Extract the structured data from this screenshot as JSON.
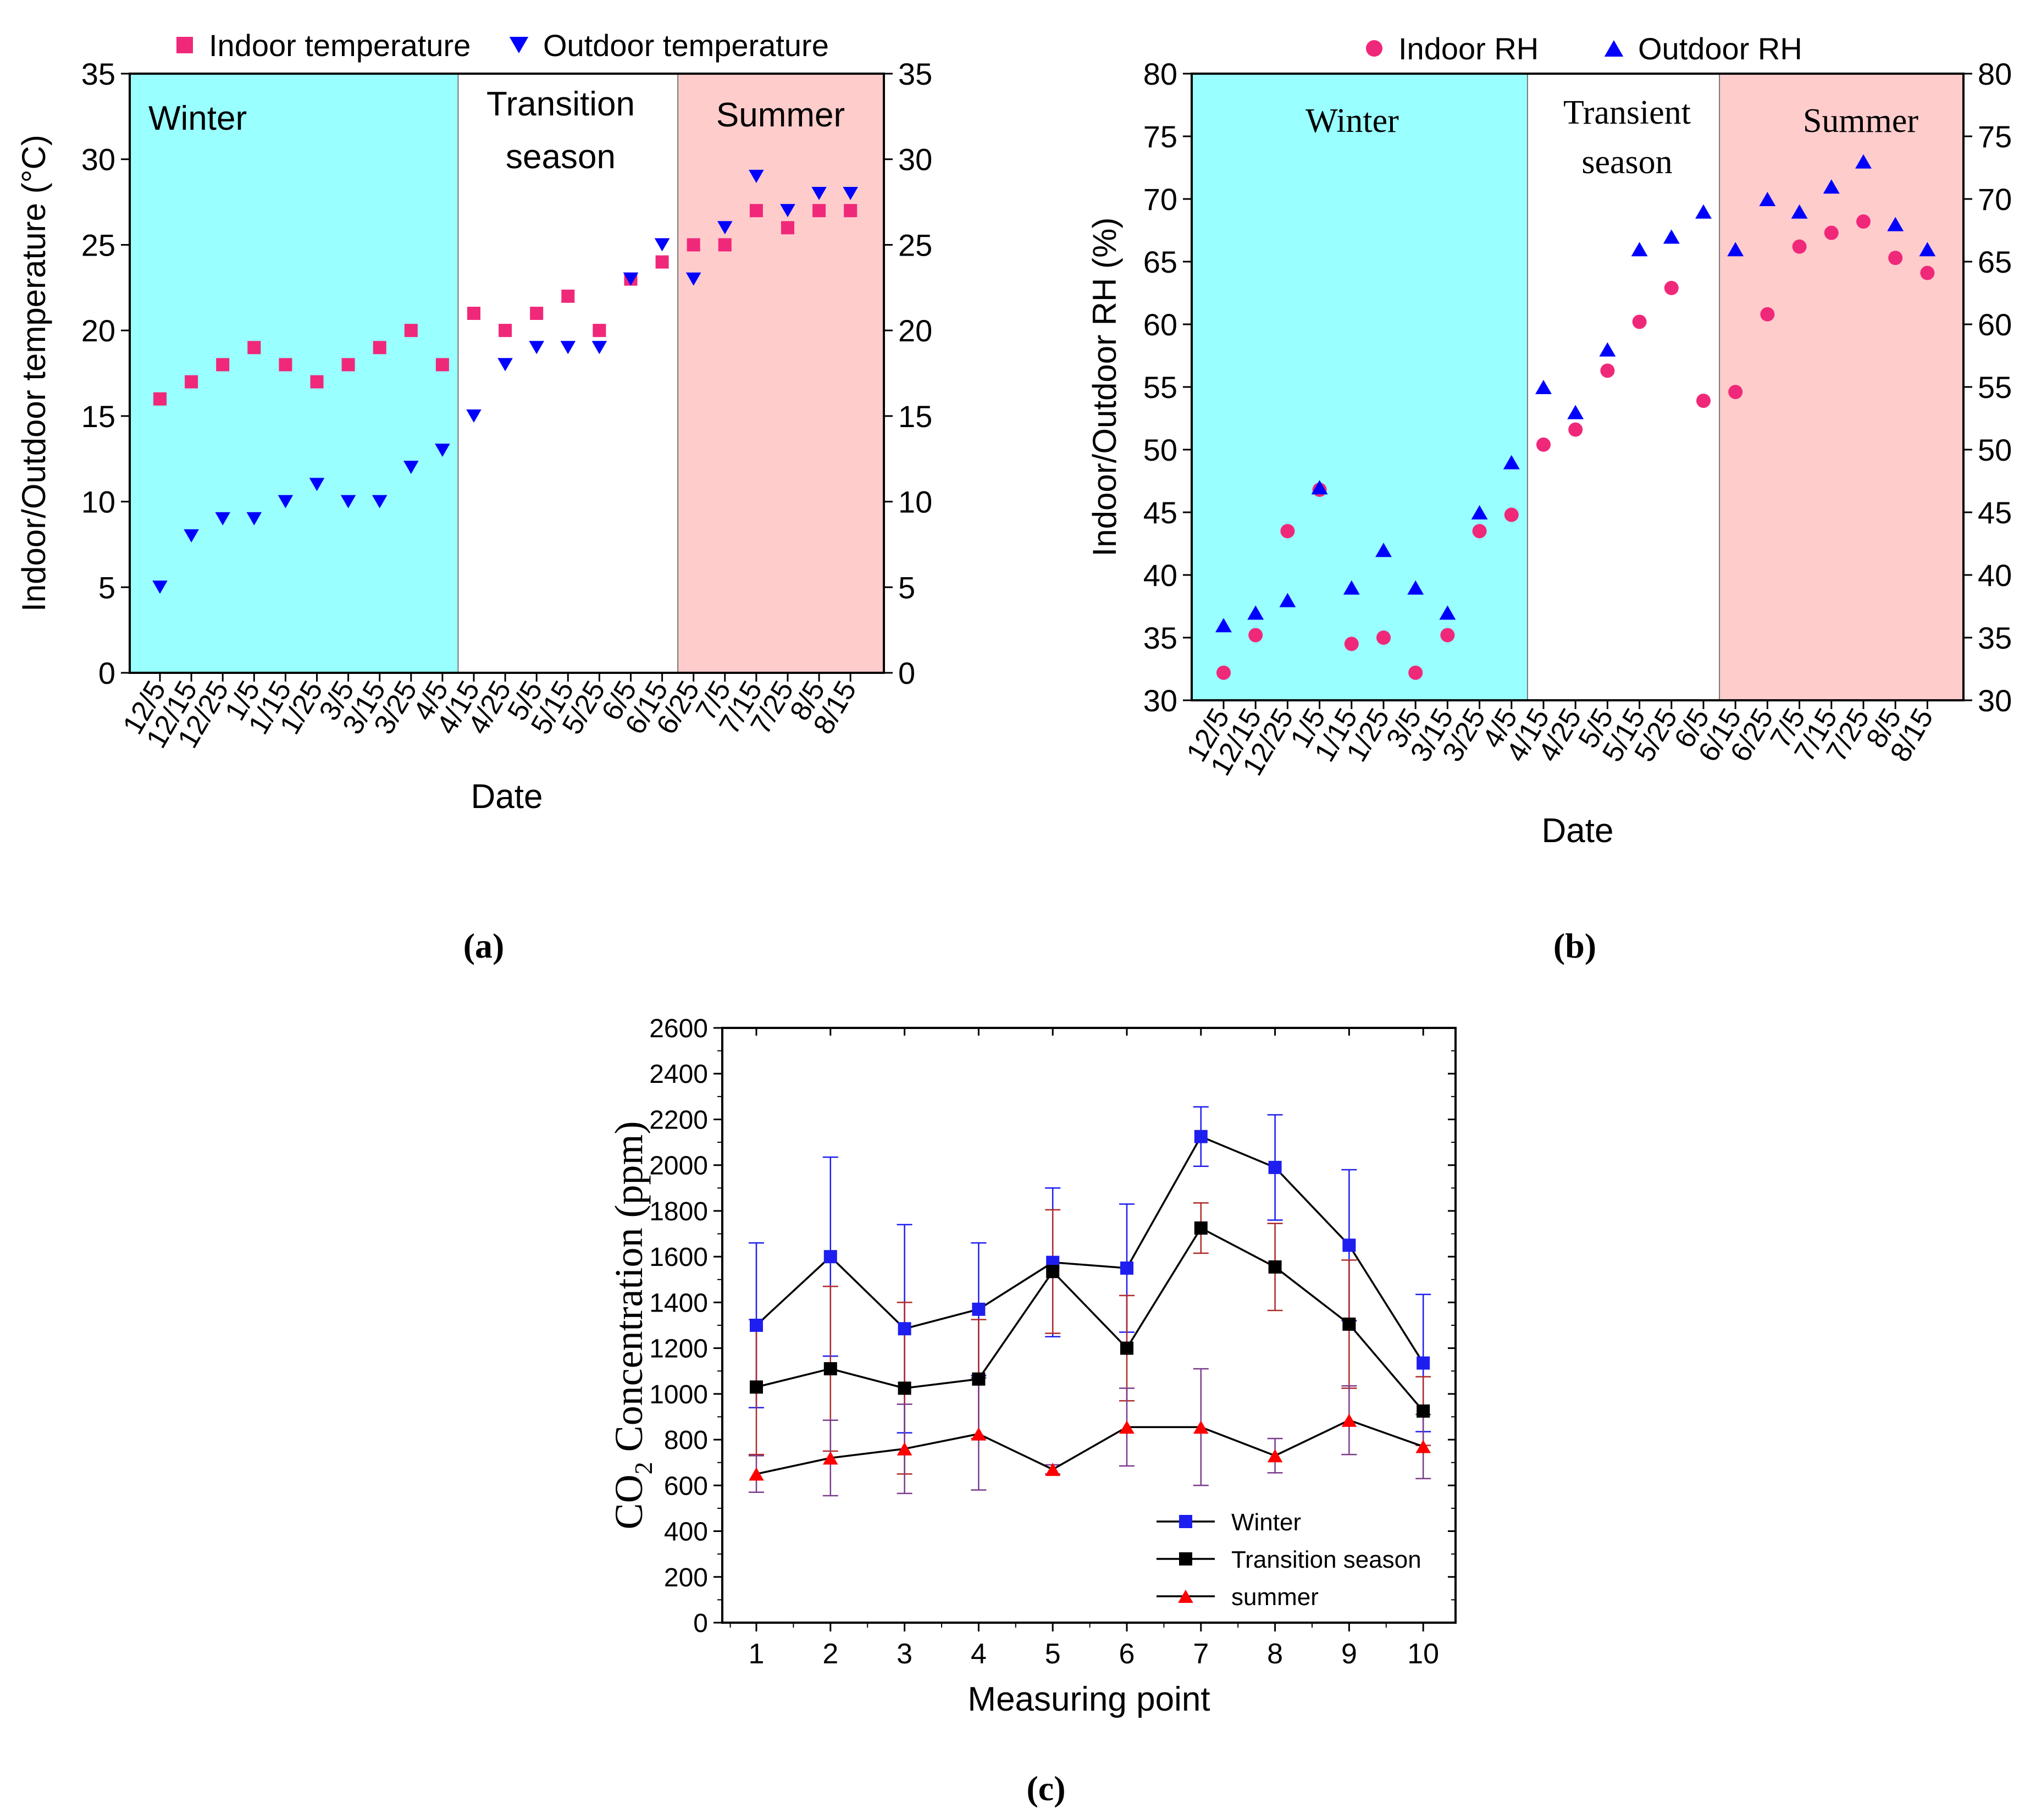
{
  "colors": {
    "winter_bg": "#99FFFF",
    "summer_bg": "#FFCCCC",
    "indoor": "#F0287A",
    "outdoor": "#0000FF",
    "winter_series": "#1E1EF0",
    "transition_series": "#000000",
    "summer_series": "#FF0000",
    "summer_error": "#7A3C8C",
    "transition_error": "#B02A2A"
  },
  "chart_data": [
    {
      "id": "a",
      "panel_label": "(a)",
      "type": "scatter",
      "title": "",
      "xlabel": "Date",
      "ylabel": "Indoor/Outdoor temperature (°C)",
      "ylim": [
        0,
        35
      ],
      "yticks": [
        "0",
        "5",
        "10",
        "15",
        "20",
        "25",
        "30",
        "35"
      ],
      "categories": [
        "12/5",
        "12/15",
        "12/25",
        "1/5",
        "1/15",
        "1/25",
        "3/5",
        "3/15",
        "3/25",
        "4/5",
        "4/15",
        "4/25",
        "5/5",
        "5/15",
        "5/25",
        "6/5",
        "6/15",
        "6/25",
        "7/5",
        "7/15",
        "7/25",
        "8/5",
        "8/15"
      ],
      "regions": [
        {
          "label": "Winter",
          "from_index": 0,
          "to_index": 10
        },
        {
          "label": "Transition season",
          "from_index": 10,
          "to_index": 17
        },
        {
          "label": "Summer",
          "from_index": 17,
          "to_index": 23
        }
      ],
      "legend": [
        "Indoor temperature",
        "Outdoor temperature"
      ],
      "series": [
        {
          "name": "Indoor temperature",
          "marker": "square",
          "values": [
            16,
            17,
            18,
            19,
            18,
            17,
            18,
            19,
            20,
            18,
            21,
            20,
            21,
            22,
            20,
            23,
            24,
            25,
            25,
            27,
            26,
            27,
            27
          ]
        },
        {
          "name": "Outdoor temperature",
          "marker": "triangle-down",
          "values": [
            5,
            8,
            9,
            9,
            10,
            11,
            10,
            10,
            12,
            13,
            15,
            18,
            19,
            19,
            19,
            23,
            25,
            23,
            26,
            29,
            27,
            28,
            28
          ]
        }
      ]
    },
    {
      "id": "b",
      "panel_label": "(b)",
      "type": "scatter",
      "title": "",
      "xlabel": "Date",
      "ylabel": "Indoor/Outdoor RH (%)",
      "ylim": [
        30,
        80
      ],
      "yticks": [
        "30",
        "35",
        "40",
        "45",
        "50",
        "55",
        "60",
        "65",
        "70",
        "75",
        "80"
      ],
      "categories": [
        "12/5",
        "12/15",
        "12/25",
        "1/5",
        "1/15",
        "1/25",
        "3/5",
        "3/15",
        "3/25",
        "4/5",
        "4/15",
        "4/25",
        "5/5",
        "5/15",
        "5/25",
        "6/5",
        "6/15",
        "6/25",
        "7/5",
        "7/15",
        "7/25",
        "8/5",
        "8/15"
      ],
      "regions": [
        {
          "label": "Winter",
          "from_index": 0,
          "to_index": 10
        },
        {
          "label": "Transient season",
          "from_index": 10,
          "to_index": 16
        },
        {
          "label": "Summer",
          "from_index": 16,
          "to_index": 23
        }
      ],
      "legend": [
        "Indoor RH",
        "Outdoor RH"
      ],
      "series": [
        {
          "name": "Indoor RH",
          "marker": "circle",
          "values": [
            32.2,
            35.2,
            43.5,
            46.8,
            34.5,
            35,
            32.2,
            35.2,
            43.5,
            44.8,
            50.4,
            51.6,
            56.3,
            60.2,
            62.9,
            53.9,
            54.6,
            60.8,
            66.2,
            67.3,
            68.2,
            65.3,
            64.1
          ]
        },
        {
          "name": "Outdoor RH",
          "marker": "triangle-up",
          "values": [
            36,
            37,
            38,
            47,
            39,
            42,
            39,
            37,
            45,
            49,
            55,
            53,
            58,
            66,
            67,
            69,
            66,
            70,
            69,
            71,
            73,
            68,
            66
          ]
        }
      ]
    },
    {
      "id": "c",
      "panel_label": "(c)",
      "type": "line",
      "title": "",
      "xlabel": "Measuring point",
      "ylabel": "CO2 Concentration (ppm)",
      "ylabel_main": "CO",
      "ylabel_sub": "2",
      "ylabel_rest": " Concentration (ppm)",
      "ylim": [
        0,
        2600
      ],
      "yticks": [
        "0",
        "200",
        "400",
        "600",
        "800",
        "1000",
        "1200",
        "1400",
        "1600",
        "1800",
        "2000",
        "2200",
        "2400",
        "2600"
      ],
      "x": [
        "1",
        "2",
        "3",
        "4",
        "5",
        "6",
        "7",
        "8",
        "9",
        "10"
      ],
      "legend": [
        "Winter",
        "Transition season",
        "summer"
      ],
      "series": [
        {
          "name": "Winter",
          "marker": "square",
          "values": [
            1300,
            1600,
            1285,
            1370,
            1575,
            1550,
            2125,
            1990,
            1650,
            1135
          ],
          "error": [
            360,
            435,
            455,
            290,
            325,
            280,
            130,
            230,
            330,
            300
          ]
        },
        {
          "name": "Transition season",
          "marker": "square",
          "values": [
            1030,
            1110,
            1025,
            1065,
            1535,
            1200,
            1725,
            1555,
            1305,
            925
          ],
          "error": [
            295,
            360,
            375,
            260,
            270,
            230,
            110,
            190,
            280,
            150
          ]
        },
        {
          "name": "summer",
          "marker": "triangle-up",
          "values": [
            650,
            720,
            760,
            825,
            670,
            855,
            855,
            730,
            885,
            770
          ],
          "error": [
            80,
            165,
            195,
            245,
            20,
            170,
            255,
            75,
            150,
            140
          ]
        }
      ]
    }
  ]
}
